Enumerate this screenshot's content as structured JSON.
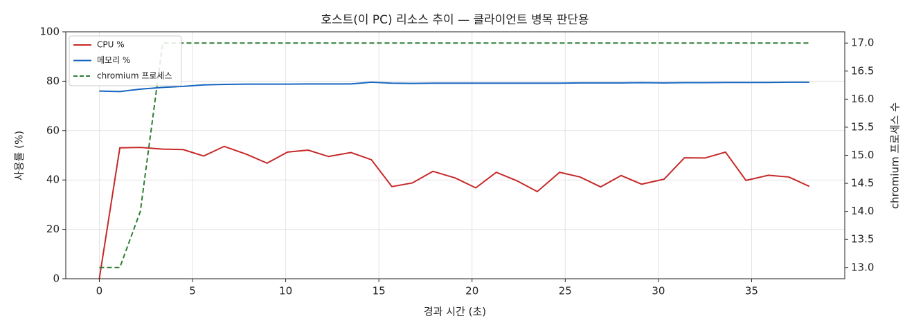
{
  "chart_data": {
    "type": "line",
    "title": "호스트(이 PC) 리소스 추이 — 클라이언트 병목 판단용",
    "xlabel": "경과 시간 (초)",
    "ylabel": "사용률 (%)",
    "y2label": "chromium 프로세스 수",
    "x": [
      0,
      1.1,
      2.2,
      3.4,
      4.5,
      5.6,
      6.7,
      7.9,
      9.0,
      10.1,
      11.2,
      12.3,
      13.5,
      14.6,
      15.7,
      16.8,
      17.9,
      19.1,
      20.2,
      21.3,
      22.4,
      23.5,
      24.7,
      25.8,
      26.9,
      28.0,
      29.1,
      30.3,
      31.4,
      32.5,
      33.6,
      34.7,
      35.9,
      37.0,
      38.1
    ],
    "series": [
      {
        "name": "CPU %",
        "color": "#c62828",
        "linestyle": "solid",
        "axis": "y",
        "values": [
          0,
          53,
          53.2,
          52.5,
          52.3,
          49.7,
          53.6,
          50.4,
          46.8,
          51.3,
          52.1,
          49.5,
          51.1,
          48.2,
          37.3,
          38.8,
          43.5,
          40.8,
          36.8,
          43.1,
          39.7,
          35.3,
          43.1,
          41.2,
          37.2,
          41.8,
          38.3,
          40.3,
          49,
          48.9,
          51.3,
          39.8,
          41.9,
          41.2,
          37.4
        ]
      },
      {
        "name": "메모리 %",
        "color": "#1565c0",
        "linestyle": "solid",
        "axis": "y",
        "values": [
          76,
          75.8,
          76.8,
          77.5,
          77.9,
          78.5,
          78.7,
          78.8,
          78.8,
          78.8,
          78.9,
          78.9,
          78.9,
          79.6,
          79.2,
          79.1,
          79.2,
          79.2,
          79.2,
          79.2,
          79.2,
          79.2,
          79.2,
          79.3,
          79.3,
          79.3,
          79.4,
          79.3,
          79.4,
          79.4,
          79.5,
          79.5,
          79.5,
          79.6,
          79.6
        ]
      },
      {
        "name": "chromium 프로세스",
        "color": "#2e7d32",
        "linestyle": "dashed",
        "axis": "y2",
        "values": [
          13,
          13,
          14,
          17,
          17,
          17,
          17,
          17,
          17,
          17,
          17,
          17,
          17,
          17,
          17,
          17,
          17,
          17,
          17,
          17,
          17,
          17,
          17,
          17,
          17,
          17,
          17,
          17,
          17,
          17,
          17,
          17,
          17,
          17,
          17
        ]
      }
    ],
    "xlim": [
      -1.8,
      40
    ],
    "xticks": [
      0,
      5,
      10,
      15,
      20,
      25,
      30,
      35
    ],
    "ylim": [
      0,
      100
    ],
    "yticks": [
      0,
      20,
      40,
      60,
      80,
      100
    ],
    "y2lim": [
      12.8,
      17.2
    ],
    "y2ticks": [
      {
        "value": 13,
        "label": "13.0"
      },
      {
        "value": 13.5,
        "label": "13.5"
      },
      {
        "value": 14,
        "label": "14.0"
      },
      {
        "value": 14.5,
        "label": "14.5"
      },
      {
        "value": 15,
        "label": "15.0"
      },
      {
        "value": 15.5,
        "label": "15.5"
      },
      {
        "value": 16,
        "label": "16.0"
      },
      {
        "value": 16.5,
        "label": "16.5"
      },
      {
        "value": 17,
        "label": "17.0"
      }
    ],
    "grid": true,
    "legend": "upper-left"
  }
}
